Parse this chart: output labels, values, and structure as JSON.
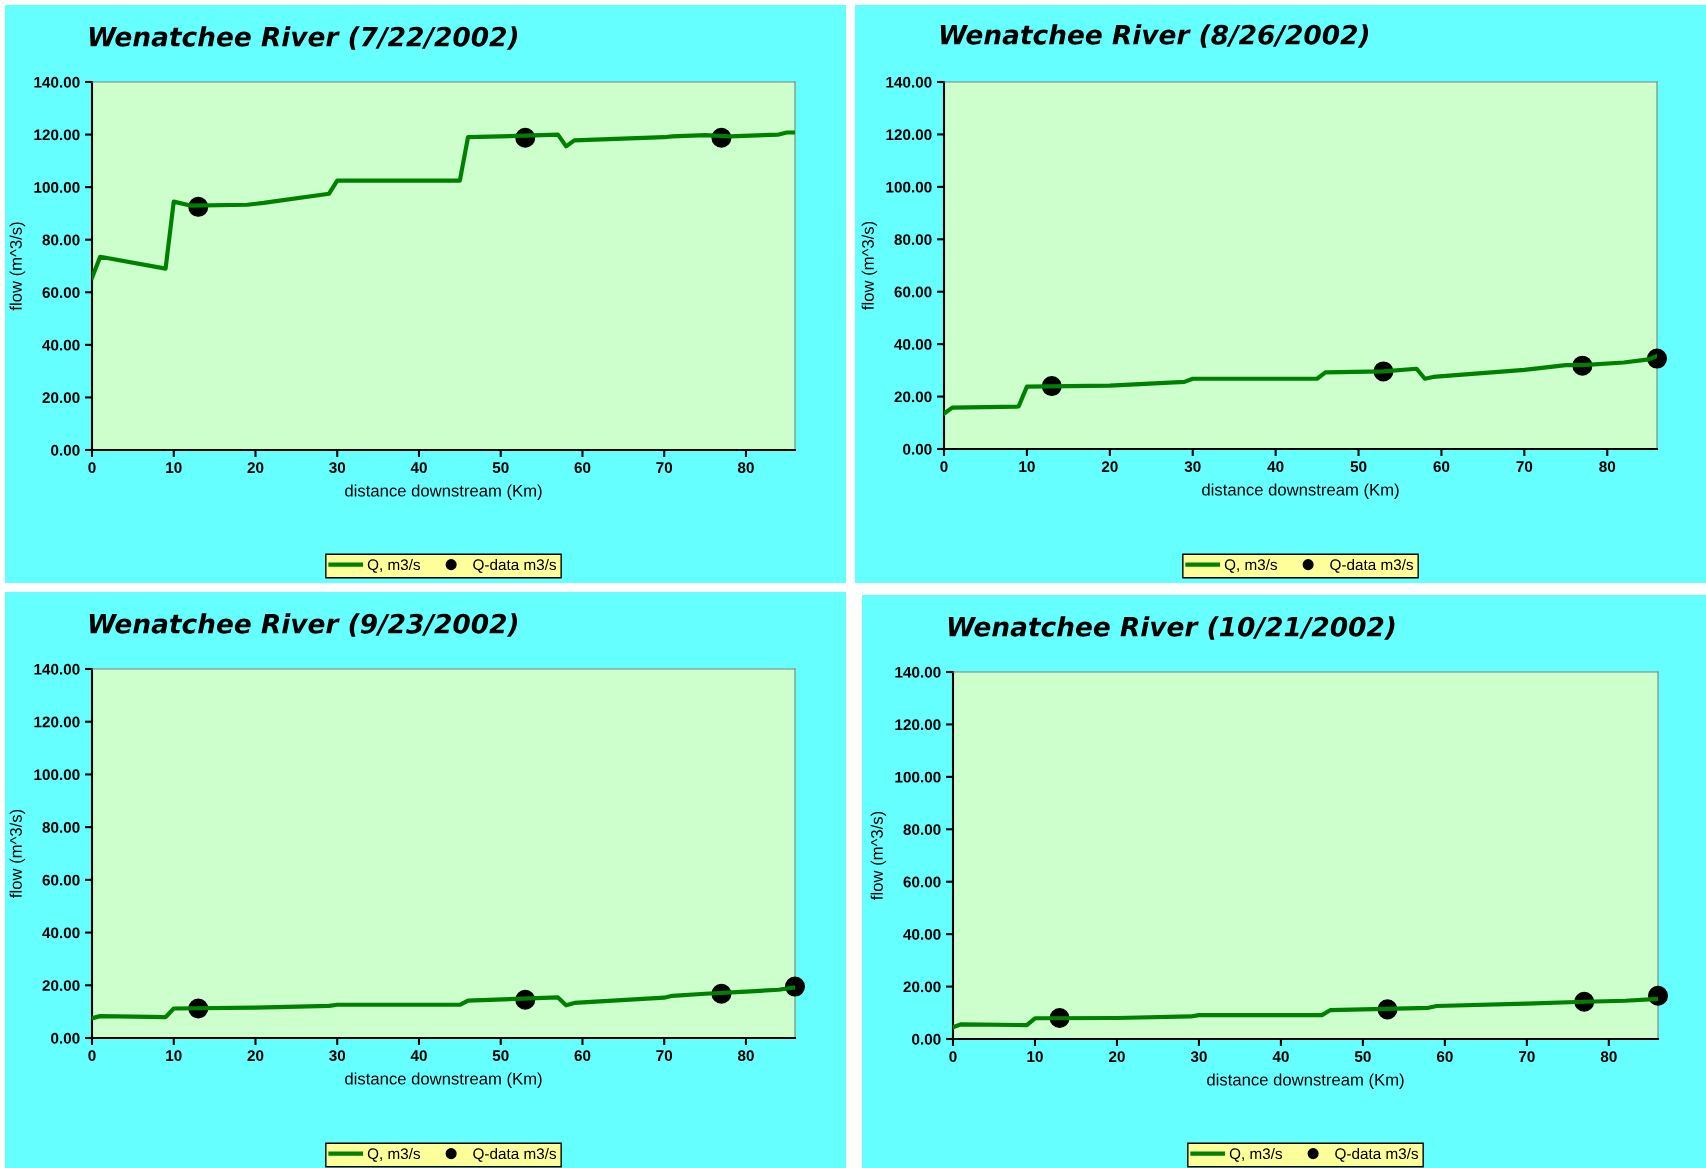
{
  "chart_data": [
    {
      "type": "line",
      "title": "Wenatchee River (7/22/2002)",
      "xlabel": "distance downstream (Km)",
      "ylabel": "flow (m^3/s)",
      "xlim": [
        0,
        86
      ],
      "xticks": [
        0,
        10,
        20,
        30,
        40,
        50,
        60,
        70,
        80
      ],
      "ylim": [
        0,
        140
      ],
      "yticks": [
        {
          "value": 0,
          "label": "0.00"
        },
        {
          "value": 20,
          "label": "20.00"
        },
        {
          "value": 40,
          "label": "40.00"
        },
        {
          "value": 60,
          "label": "60.00"
        },
        {
          "value": 80,
          "label": "80.00"
        },
        {
          "value": 100,
          "label": "100.00"
        },
        {
          "value": 120,
          "label": "120.00"
        },
        {
          "value": 140,
          "label": "140.00"
        }
      ],
      "grid": false,
      "legend": "bottom",
      "series": [
        {
          "name": "Q, m3/s",
          "color": "#008000",
          "marker": "none",
          "x": [
            0,
            1,
            9,
            10,
            12,
            19,
            21,
            29,
            30,
            45,
            46,
            50,
            57,
            58,
            59,
            70,
            71,
            75,
            78,
            84,
            85,
            86
          ],
          "values": [
            65.5,
            73.5,
            69,
            94.5,
            93,
            93.3,
            94,
            97.5,
            102.5,
            102.5,
            119,
            119.3,
            120,
            115.5,
            117.8,
            119,
            119.3,
            119.8,
            119.3,
            120,
            120.8,
            120.8
          ]
        },
        {
          "name": "Q-data m3/s",
          "type": "scatter",
          "color": "#000000",
          "marker": "circle",
          "x": [
            13,
            53,
            77
          ],
          "values": [
            92.5,
            118.8,
            118.8
          ]
        }
      ]
    },
    {
      "type": "line",
      "title": "Wenatchee River (8/26/2002)",
      "xlabel": "distance downstream (Km)",
      "ylabel": "flow (m^3/s)",
      "xlim": [
        0,
        86
      ],
      "xticks": [
        0,
        10,
        20,
        30,
        40,
        50,
        60,
        70,
        80
      ],
      "ylim": [
        0,
        140
      ],
      "yticks": [
        {
          "value": 0,
          "label": "0.00"
        },
        {
          "value": 20,
          "label": "20.00"
        },
        {
          "value": 40,
          "label": "40.00"
        },
        {
          "value": 60,
          "label": "60.00"
        },
        {
          "value": 80,
          "label": "80.00"
        },
        {
          "value": 100,
          "label": "100.00"
        },
        {
          "value": 120,
          "label": "120.00"
        },
        {
          "value": 140,
          "label": "140.00"
        }
      ],
      "grid": false,
      "legend": "bottom",
      "series": [
        {
          "name": "Q, m3/s",
          "color": "#008000",
          "marker": "none",
          "x": [
            0,
            1,
            9,
            10,
            20,
            29,
            30,
            45,
            46,
            53,
            57,
            58,
            59,
            70,
            75,
            77,
            82,
            85,
            86
          ],
          "values": [
            13.5,
            15.8,
            16.2,
            23.8,
            24.2,
            25.6,
            26.8,
            26.8,
            29.2,
            29.6,
            30.6,
            26.8,
            27.5,
            30.2,
            32,
            32,
            33,
            34.2,
            35.5
          ]
        },
        {
          "name": "Q-data m3/s",
          "type": "scatter",
          "color": "#000000",
          "marker": "circle",
          "x": [
            13,
            53,
            77,
            86
          ],
          "values": [
            24,
            29.6,
            31.8,
            34.5
          ]
        }
      ]
    },
    {
      "type": "line",
      "title": "Wenatchee River (9/23/2002)",
      "xlabel": "distance downstream (Km)",
      "ylabel": "flow (m^3/s)",
      "xlim": [
        0,
        86
      ],
      "xticks": [
        0,
        10,
        20,
        30,
        40,
        50,
        60,
        70,
        80
      ],
      "ylim": [
        0,
        140
      ],
      "yticks": [
        {
          "value": 0,
          "label": "0.00"
        },
        {
          "value": 20,
          "label": "20.00"
        },
        {
          "value": 40,
          "label": "40.00"
        },
        {
          "value": 60,
          "label": "60.00"
        },
        {
          "value": 80,
          "label": "80.00"
        },
        {
          "value": 100,
          "label": "100.00"
        },
        {
          "value": 120,
          "label": "120.00"
        },
        {
          "value": 140,
          "label": "140.00"
        }
      ],
      "grid": false,
      "legend": "bottom",
      "series": [
        {
          "name": "Q, m3/s",
          "color": "#008000",
          "marker": "none",
          "x": [
            0,
            1,
            9,
            10,
            20,
            29,
            30,
            45,
            46,
            57,
            58,
            59,
            70,
            71,
            75,
            80,
            84,
            86
          ],
          "values": [
            7.5,
            8.3,
            7.9,
            11.2,
            11.5,
            12.2,
            12.6,
            12.6,
            14.2,
            15.4,
            12.4,
            13.3,
            15.3,
            16,
            16.8,
            17.6,
            18.3,
            19.2
          ]
        },
        {
          "name": "Q-data m3/s",
          "type": "scatter",
          "color": "#000000",
          "marker": "circle",
          "x": [
            13,
            53,
            77,
            86
          ],
          "values": [
            11.2,
            14.5,
            16.8,
            19.5
          ]
        }
      ]
    },
    {
      "type": "line",
      "title": "Wenatchee River (10/21/2002)",
      "xlabel": "distance downstream (Km)",
      "ylabel": "flow (m^3/s)",
      "xlim": [
        0,
        86
      ],
      "xticks": [
        0,
        10,
        20,
        30,
        40,
        50,
        60,
        70,
        80
      ],
      "ylim": [
        0,
        140
      ],
      "yticks": [
        {
          "value": 0,
          "label": "0.00"
        },
        {
          "value": 20,
          "label": "20.00"
        },
        {
          "value": 40,
          "label": "40.00"
        },
        {
          "value": 60,
          "label": "60.00"
        },
        {
          "value": 80,
          "label": "80.00"
        },
        {
          "value": 100,
          "label": "100.00"
        },
        {
          "value": 120,
          "label": "120.00"
        },
        {
          "value": 140,
          "label": "140.00"
        }
      ],
      "grid": false,
      "legend": "bottom",
      "series": [
        {
          "name": "Q, m3/s",
          "color": "#008000",
          "marker": "none",
          "x": [
            0,
            1,
            9,
            10,
            20,
            29,
            30,
            45,
            46,
            58,
            59,
            70,
            77,
            82,
            86
          ],
          "values": [
            4.5,
            5.6,
            5.3,
            7.9,
            8,
            8.6,
            9.1,
            9.1,
            11,
            11.9,
            12.6,
            13.5,
            14.2,
            14.6,
            15.3
          ]
        },
        {
          "name": "Q-data m3/s",
          "type": "scatter",
          "color": "#000000",
          "marker": "circle",
          "x": [
            13,
            53,
            77,
            86
          ],
          "values": [
            8,
            11.3,
            14.2,
            16.5
          ]
        }
      ]
    }
  ]
}
